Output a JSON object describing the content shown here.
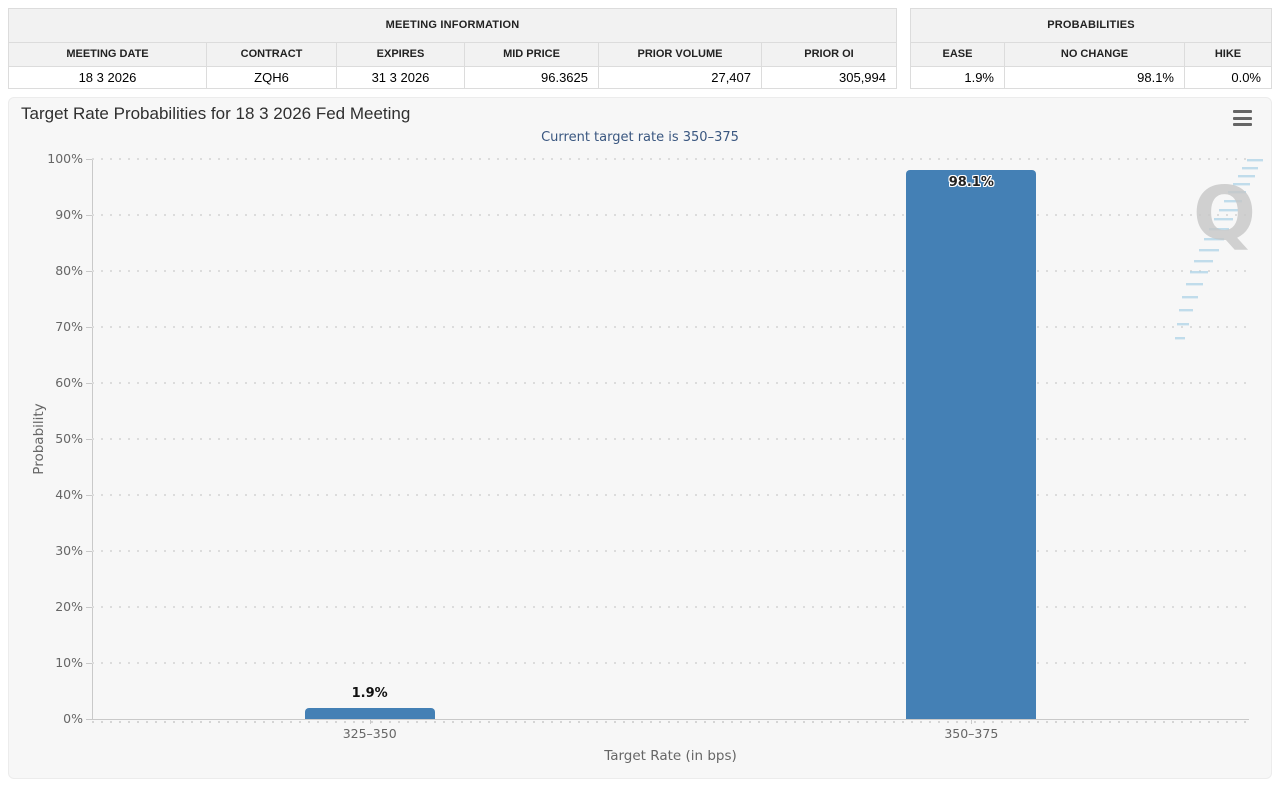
{
  "meeting_info": {
    "title": "MEETING INFORMATION",
    "columns": [
      "MEETING DATE",
      "CONTRACT",
      "EXPIRES",
      "MID PRICE",
      "PRIOR VOLUME",
      "PRIOR OI"
    ],
    "row": [
      "18 3 2026",
      "ZQH6",
      "31 3 2026",
      "96.3625",
      "27,407",
      "305,994"
    ]
  },
  "probabilities": {
    "title": "PROBABILITIES",
    "columns": [
      "EASE",
      "NO CHANGE",
      "HIKE"
    ],
    "row": [
      "1.9%",
      "98.1%",
      "0.0%"
    ]
  },
  "chart": {
    "title": "Target Rate Probabilities for 18 3 2026 Fed Meeting",
    "subtitle": "Current target rate is 350–375",
    "menu_icon": "hamburger-menu-icon",
    "watermark": "QuikStrike Q logo"
  },
  "chart_data": {
    "type": "bar",
    "title": "Target Rate Probabilities for 18 3 2026 Fed Meeting",
    "subtitle": "Current target rate is 350–375",
    "categories": [
      "325–350",
      "350–375"
    ],
    "values": [
      1.9,
      98.1
    ],
    "value_labels": [
      "1.9%",
      "98.1%"
    ],
    "xlabel": "Target Rate (in bps)",
    "ylabel": "Probability",
    "ylim": [
      0,
      100
    ],
    "ytick_labels": [
      "0%",
      "10%",
      "20%",
      "30%",
      "40%",
      "50%",
      "60%",
      "70%",
      "80%",
      "90%",
      "100%"
    ],
    "grid": "dotted horizontal",
    "legend": "none",
    "bar_color": "#4480b5"
  },
  "colors": {
    "bar": "#4480b5",
    "subtitle_text": "#3a5780",
    "chart_background": "#f7f7f7",
    "grid_dot": "#dcdcdc",
    "table_header_bg": "#f2f2f2"
  }
}
